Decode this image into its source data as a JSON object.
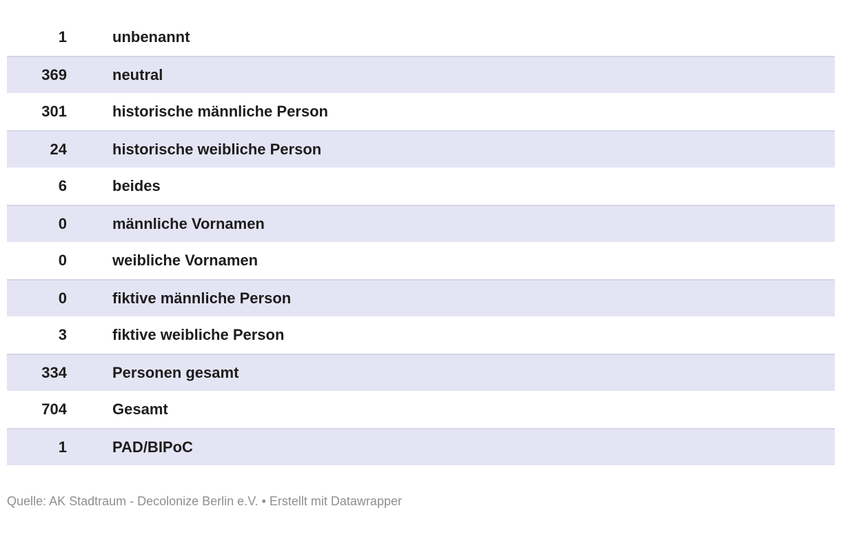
{
  "chart_data": {
    "type": "table",
    "rows": [
      {
        "value": 1,
        "label": "unbenannt"
      },
      {
        "value": 369,
        "label": "neutral"
      },
      {
        "value": 301,
        "label": "historische männliche Person"
      },
      {
        "value": 24,
        "label": "historische weibliche Person"
      },
      {
        "value": 6,
        "label": "beides"
      },
      {
        "value": 0,
        "label": "männliche Vornamen"
      },
      {
        "value": 0,
        "label": "weibliche Vornamen"
      },
      {
        "value": 0,
        "label": "fiktive männliche Person"
      },
      {
        "value": 3,
        "label": "fiktive weibliche Person"
      },
      {
        "value": 334,
        "label": "Personen gesamt"
      },
      {
        "value": 704,
        "label": "Gesamt"
      },
      {
        "value": 1,
        "label": "PAD/BIPoC"
      }
    ],
    "layout_hints": {
      "zebra_striping": "even rows (2nd, 4th, ...) shaded",
      "value_column_alignment": "right",
      "label_column_alignment": "left"
    }
  },
  "footer": {
    "source_label": "Quelle:",
    "source": "AK Stadtraum - Decolonize Berlin e.V.",
    "separator": "•",
    "attribution": "Erstellt mit Datawrapper"
  },
  "colors": {
    "stripe_bg": "#e4e4f4",
    "stripe_border": "#d3d5e9",
    "row_text": "#1d1d1d",
    "footer_text": "#8f8f8f",
    "page_bg": "#ffffff"
  }
}
